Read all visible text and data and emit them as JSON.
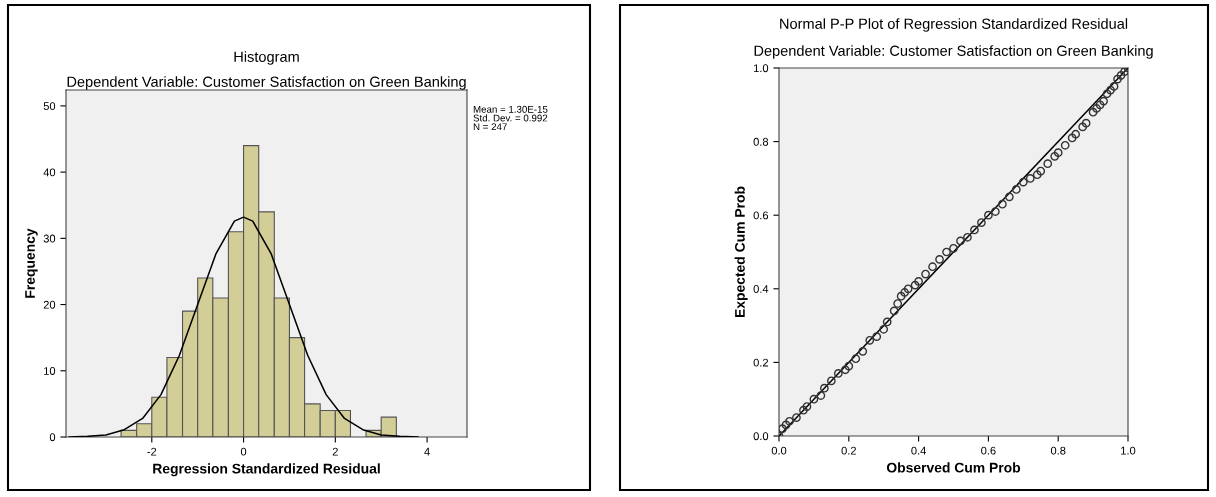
{
  "chart_data": [
    {
      "type": "histogram",
      "title": "Histogram",
      "subtitle": "Dependent Variable: Customer Satisfaction on Green Banking",
      "xlabel": "Regression Standardized Residual",
      "ylabel": "Frequency",
      "bins": [
        -2.67,
        -2.33,
        -2.0,
        -1.67,
        -1.33,
        -1.0,
        -0.67,
        -0.33,
        0,
        0.33,
        0.67,
        1.0,
        1.33,
        1.67,
        2.0,
        2.33,
        2.67,
        3.0,
        3.33
      ],
      "values": [
        1,
        2,
        6,
        12,
        19,
        24,
        21,
        31,
        44,
        34,
        21,
        15,
        5,
        4,
        4,
        0,
        1,
        3
      ],
      "color": "#d3ce97",
      "series": [
        {
          "type": "line",
          "color": "#000000",
          "x": [
            -3.8,
            -3.4,
            -3.0,
            -2.6,
            -2.2,
            -1.8,
            -1.4,
            -1.0,
            -0.6,
            -0.2,
            0,
            0.2,
            0.6,
            1.0,
            1.4,
            1.8,
            2.2,
            2.6,
            3.0,
            3.4,
            3.8
          ],
          "values": [
            0,
            0.1,
            0.3,
            1.1,
            2.8,
            6.4,
            12.3,
            20,
            27.7,
            32.6,
            33.2,
            32.6,
            27.7,
            20,
            12.3,
            6.4,
            2.8,
            1.1,
            0.3,
            0.1,
            0
          ]
        }
      ],
      "xlim": [
        -3.87,
        4.87
      ],
      "ylim": [
        0,
        52.4
      ],
      "xticks": [
        -2,
        0,
        2,
        4
      ],
      "yticks": [
        0,
        10,
        20,
        30,
        40,
        50
      ],
      "grid": false,
      "legend": false,
      "annotations": [
        "Mean = 1.30E-15\nStd. Dev. = 0.992\nN = 247"
      ]
    },
    {
      "type": "scatter",
      "title": "Normal P-P Plot of Regression Standardized Residual",
      "subtitle": "Dependent Variable: Customer Satisfaction on Green Banking",
      "xlabel": "Observed Cum Prob",
      "ylabel": "Expected Cum Prob",
      "marker": "circle",
      "grid": false,
      "legend": false,
      "series": [
        {
          "color": "#333333",
          "x": [
            0,
            0.01,
            0.02,
            0.03,
            0.05,
            0.07,
            0.08,
            0.1,
            0.12,
            0.13,
            0.15,
            0.17,
            0.19,
            0.2,
            0.22,
            0.24,
            0.26,
            0.28,
            0.3,
            0.31,
            0.33,
            0.34,
            0.35,
            0.36,
            0.37,
            0.39,
            0.4,
            0.42,
            0.44,
            0.46,
            0.48,
            0.5,
            0.52,
            0.54,
            0.56,
            0.58,
            0.6,
            0.62,
            0.64,
            0.66,
            0.68,
            0.7,
            0.72,
            0.74,
            0.75,
            0.77,
            0.79,
            0.8,
            0.82,
            0.84,
            0.85,
            0.87,
            0.88,
            0.9,
            0.91,
            0.92,
            0.93,
            0.94,
            0.95,
            0.96,
            0.97,
            0.98,
            0.99,
            1.0
          ],
          "values": [
            0,
            0.02,
            0.03,
            0.04,
            0.05,
            0.07,
            0.08,
            0.1,
            0.11,
            0.13,
            0.15,
            0.17,
            0.18,
            0.19,
            0.21,
            0.23,
            0.26,
            0.27,
            0.29,
            0.31,
            0.34,
            0.36,
            0.38,
            0.39,
            0.4,
            0.41,
            0.42,
            0.44,
            0.46,
            0.48,
            0.5,
            0.51,
            0.53,
            0.54,
            0.56,
            0.58,
            0.6,
            0.61,
            0.63,
            0.65,
            0.67,
            0.69,
            0.7,
            0.71,
            0.72,
            0.74,
            0.76,
            0.77,
            0.79,
            0.81,
            0.82,
            0.84,
            0.85,
            0.88,
            0.89,
            0.9,
            0.91,
            0.93,
            0.94,
            0.95,
            0.97,
            0.98,
            0.99,
            1.0
          ]
        },
        {
          "type": "line",
          "marker": "none",
          "color": "#000000",
          "x": [
            0,
            1
          ],
          "values": [
            0,
            1
          ]
        }
      ],
      "xlim": [
        0,
        1
      ],
      "ylim": [
        0,
        1
      ],
      "xticks": [
        {
          "value": 0,
          "label": "0.0"
        },
        {
          "value": 0.2,
          "label": "0.2"
        },
        {
          "value": 0.4,
          "label": "0.4"
        },
        {
          "value": 0.6,
          "label": "0.6"
        },
        {
          "value": 0.8,
          "label": "0.8"
        },
        {
          "value": 1,
          "label": "1.0"
        }
      ],
      "yticks": [
        {
          "value": 0,
          "label": "0.0"
        },
        {
          "value": 0.2,
          "label": "0.2"
        },
        {
          "value": 0.4,
          "label": "0.4"
        },
        {
          "value": 0.6,
          "label": "0.6"
        },
        {
          "value": 0.8,
          "label": "0.8"
        },
        {
          "value": 1,
          "label": "1.0"
        }
      ]
    }
  ]
}
